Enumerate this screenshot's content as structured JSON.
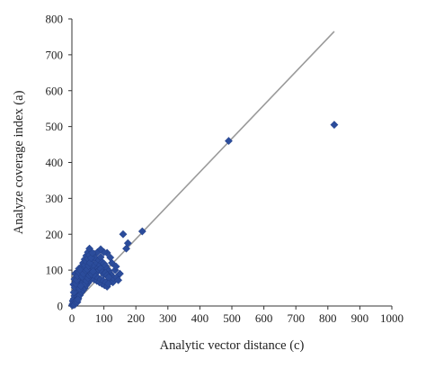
{
  "chart_data": {
    "type": "scatter",
    "title": "",
    "xlabel": "Analytic vector distance (c)",
    "ylabel": "Analyze coverage index (a)",
    "xlim": [
      0,
      1000
    ],
    "ylim": [
      0,
      800
    ],
    "xticks": [
      "0",
      "100",
      "200",
      "300",
      "400",
      "500",
      "600",
      "700",
      "800",
      "900",
      "1000"
    ],
    "yticks": [
      "0",
      "100",
      "200",
      "300",
      "400",
      "500",
      "600",
      "700",
      "800"
    ],
    "grid": false,
    "legend": "none",
    "marker": "diamond",
    "marker_color": "#2b4c9b",
    "line_color": "#9a9a9a",
    "trendline": {
      "x": [
        0,
        820
      ],
      "y": [
        0,
        765
      ]
    },
    "series": [
      {
        "points": [
          [
            2,
            5
          ],
          [
            4,
            12
          ],
          [
            6,
            20
          ],
          [
            8,
            28
          ],
          [
            10,
            8
          ],
          [
            12,
            35
          ],
          [
            14,
            18
          ],
          [
            16,
            44
          ],
          [
            18,
            26
          ],
          [
            20,
            52
          ],
          [
            5,
            60
          ],
          [
            8,
            75
          ],
          [
            10,
            90
          ],
          [
            12,
            68
          ],
          [
            15,
            82
          ],
          [
            18,
            95
          ],
          [
            22,
            104
          ],
          [
            25,
            60
          ],
          [
            28,
            88
          ],
          [
            30,
            110
          ],
          [
            32,
            72
          ],
          [
            35,
            120
          ],
          [
            38,
            96
          ],
          [
            40,
            130
          ],
          [
            42,
            84
          ],
          [
            45,
            140
          ],
          [
            48,
            108
          ],
          [
            50,
            150
          ],
          [
            52,
            92
          ],
          [
            55,
            160
          ],
          [
            58,
            118
          ],
          [
            60,
            126
          ],
          [
            62,
            100
          ],
          [
            65,
            138
          ],
          [
            68,
            112
          ],
          [
            70,
            145
          ],
          [
            72,
            98
          ],
          [
            75,
            132
          ],
          [
            78,
            120
          ],
          [
            80,
            150
          ],
          [
            82,
            106
          ],
          [
            85,
            128
          ],
          [
            88,
            114
          ],
          [
            90,
            136
          ],
          [
            92,
            100
          ],
          [
            95,
            122
          ],
          [
            98,
            108
          ],
          [
            100,
            118
          ],
          [
            102,
            96
          ],
          [
            105,
            112
          ],
          [
            108,
            90
          ],
          [
            110,
            104
          ],
          [
            112,
            82
          ],
          [
            115,
            98
          ],
          [
            118,
            76
          ],
          [
            120,
            90
          ],
          [
            122,
            70
          ],
          [
            125,
            84
          ],
          [
            128,
            66
          ],
          [
            130,
            78
          ],
          [
            20,
            22
          ],
          [
            25,
            30
          ],
          [
            30,
            38
          ],
          [
            35,
            44
          ],
          [
            40,
            50
          ],
          [
            45,
            58
          ],
          [
            50,
            64
          ],
          [
            55,
            70
          ],
          [
            60,
            76
          ],
          [
            65,
            82
          ],
          [
            70,
            88
          ],
          [
            75,
            92
          ],
          [
            80,
            96
          ],
          [
            85,
            100
          ],
          [
            90,
            104
          ],
          [
            95,
            94
          ],
          [
            100,
            88
          ],
          [
            105,
            92
          ],
          [
            110,
            86
          ],
          [
            115,
            80
          ],
          [
            10,
            40
          ],
          [
            15,
            55
          ],
          [
            20,
            68
          ],
          [
            25,
            78
          ],
          [
            30,
            92
          ],
          [
            35,
            102
          ],
          [
            40,
            114
          ],
          [
            45,
            124
          ],
          [
            50,
            132
          ],
          [
            55,
            142
          ],
          [
            3,
            15
          ],
          [
            6,
            38
          ],
          [
            9,
            52
          ],
          [
            12,
            62
          ],
          [
            15,
            72
          ],
          [
            18,
            84
          ],
          [
            22,
            94
          ],
          [
            26,
            100
          ],
          [
            30,
            58
          ],
          [
            34,
            66
          ],
          [
            38,
            74
          ],
          [
            42,
            62
          ],
          [
            46,
            70
          ],
          [
            50,
            78
          ],
          [
            54,
            86
          ],
          [
            58,
            94
          ],
          [
            62,
            88
          ],
          [
            66,
            96
          ],
          [
            70,
            74
          ],
          [
            74,
            82
          ],
          [
            78,
            70
          ],
          [
            82,
            78
          ],
          [
            86,
            66
          ],
          [
            90,
            74
          ],
          [
            94,
            62
          ],
          [
            98,
            70
          ],
          [
            102,
            58
          ],
          [
            106,
            66
          ],
          [
            110,
            54
          ],
          [
            114,
            62
          ],
          [
            1,
            2
          ],
          [
            3,
            6
          ],
          [
            5,
            3
          ],
          [
            7,
            10
          ],
          [
            9,
            4
          ],
          [
            11,
            14
          ],
          [
            13,
            9
          ],
          [
            15,
            16
          ],
          [
            17,
            11
          ],
          [
            19,
            18
          ],
          [
            24,
            48
          ],
          [
            28,
            56
          ],
          [
            32,
            82
          ],
          [
            36,
            90
          ],
          [
            44,
            98
          ],
          [
            48,
            102
          ],
          [
            52,
            112
          ],
          [
            56,
            120
          ],
          [
            60,
            134
          ],
          [
            64,
            148
          ],
          [
            140,
            80
          ],
          [
            145,
            72
          ],
          [
            150,
            90
          ],
          [
            135,
            100
          ],
          [
            138,
            110
          ],
          [
            125,
            120
          ],
          [
            120,
            135
          ],
          [
            110,
            148
          ],
          [
            100,
            150
          ],
          [
            90,
            158
          ],
          [
            160,
            200
          ],
          [
            170,
            160
          ],
          [
            175,
            175
          ],
          [
            220,
            208
          ],
          [
            490,
            460
          ],
          [
            820,
            505
          ]
        ]
      }
    ]
  }
}
